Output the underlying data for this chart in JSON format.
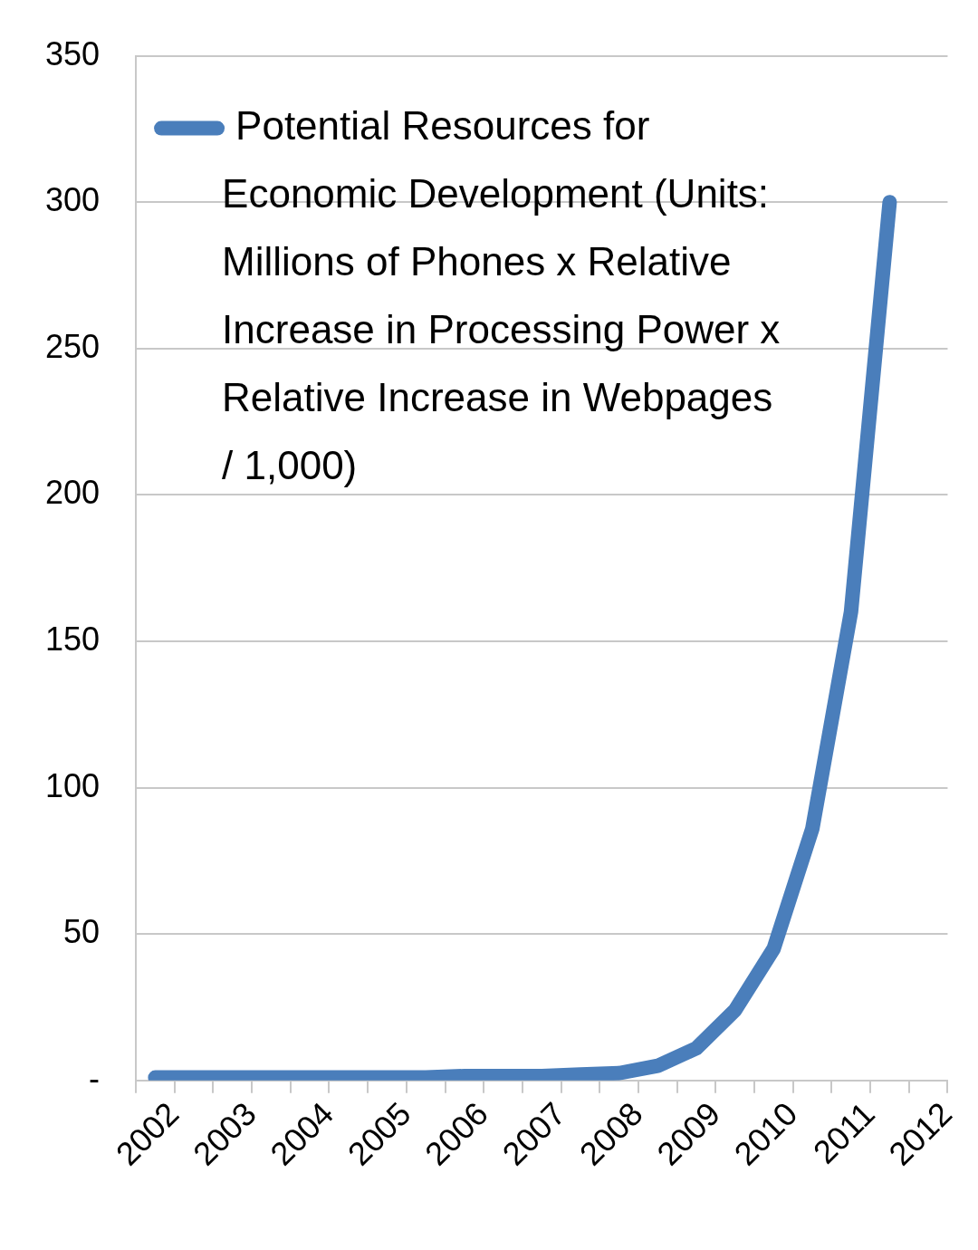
{
  "chart_data": {
    "type": "line",
    "x": [
      2001.75,
      2002.25,
      2002.75,
      2003.25,
      2003.75,
      2004.25,
      2004.75,
      2005.25,
      2005.75,
      2006.25,
      2006.75,
      2007.25,
      2007.75,
      2008.25,
      2008.75,
      2009.25,
      2009.75,
      2010.25,
      2010.75,
      2011.25
    ],
    "series": [
      {
        "name": "Potential Resources for Economic Development (Units: Millions of Phones x Relative Increase in Processing Power x Relative Increase in Webpages / 1,000)",
        "color": "#4a7ebb",
        "values": [
          1,
          1,
          1,
          1,
          1,
          1,
          1,
          1,
          1.5,
          1.5,
          1.5,
          2,
          2.5,
          5,
          11,
          24,
          45,
          86,
          160,
          300
        ]
      }
    ],
    "xlim": [
      2001.5,
      2012
    ],
    "xticks": [
      {
        "value": 2001.5,
        "label": null
      },
      2002,
      {
        "value": 2002.5,
        "label": null
      },
      2003,
      {
        "value": 2003.5,
        "label": null
      },
      2004,
      {
        "value": 2004.5,
        "label": null
      },
      2005,
      {
        "value": 2005.5,
        "label": null
      },
      2006,
      {
        "value": 2006.5,
        "label": null
      },
      2007,
      {
        "value": 2007.5,
        "label": null
      },
      2008,
      {
        "value": 2008.5,
        "label": null
      },
      2009,
      {
        "value": 2009.5,
        "label": null
      },
      2010,
      {
        "value": 2010.5,
        "label": null
      },
      2011,
      {
        "value": 2011.5,
        "label": null
      },
      2012
    ],
    "ylim": [
      0,
      350
    ],
    "yticks": [
      {
        "value": 0,
        "label": "-"
      },
      50,
      100,
      150,
      200,
      250,
      300,
      350
    ],
    "grid": "y",
    "legend": "top left",
    "marker": "none",
    "line_style": "solid"
  }
}
